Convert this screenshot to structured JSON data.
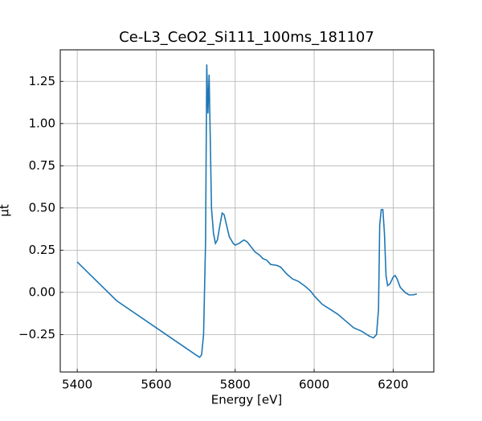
{
  "chart_data": {
    "type": "line",
    "title": "Ce-L3_CeO2_Si111_100ms_181107",
    "xlabel": "Energy [eV]",
    "ylabel": "μt",
    "x": [
      5400,
      5500,
      5600,
      5700,
      5710,
      5715,
      5720,
      5725,
      5728,
      5731,
      5734,
      5737,
      5740,
      5745,
      5750,
      5755,
      5760,
      5767,
      5772,
      5778,
      5785,
      5795,
      5800,
      5810,
      5822,
      5830,
      5840,
      5850,
      5862,
      5870,
      5880,
      5890,
      5905,
      5915,
      5930,
      5945,
      5960,
      5975,
      5990,
      6000,
      6020,
      6040,
      6060,
      6080,
      6100,
      6120,
      6140,
      6150,
      6158,
      6163,
      6166,
      6170,
      6174,
      6178,
      6182,
      6186,
      6192,
      6200,
      6205,
      6210,
      6218,
      6230,
      6240,
      6250,
      6260
    ],
    "series": [
      {
        "name": "Ce-L3_CeO2_Si111_100ms_181107",
        "color": "#1f77b4",
        "values": [
          0.18,
          -0.05,
          -0.21,
          -0.37,
          -0.385,
          -0.37,
          -0.25,
          0.3,
          1.35,
          1.06,
          1.29,
          0.9,
          0.5,
          0.35,
          0.29,
          0.31,
          0.38,
          0.47,
          0.46,
          0.4,
          0.33,
          0.29,
          0.28,
          0.29,
          0.31,
          0.3,
          0.27,
          0.24,
          0.22,
          0.2,
          0.19,
          0.165,
          0.16,
          0.15,
          0.11,
          0.08,
          0.065,
          0.04,
          0.01,
          -0.02,
          -0.07,
          -0.1,
          -0.13,
          -0.17,
          -0.21,
          -0.23,
          -0.26,
          -0.27,
          -0.25,
          -0.1,
          0.4,
          0.49,
          0.49,
          0.35,
          0.1,
          0.04,
          0.05,
          0.09,
          0.1,
          0.08,
          0.03,
          0.0,
          -0.015,
          -0.015,
          -0.01
        ]
      }
    ],
    "xlim": [
      5357,
      6303
    ],
    "xticks": [
      5400,
      5600,
      5800,
      6000,
      6200
    ],
    "ylim": [
      -0.472,
      1.437
    ],
    "yticks": [
      {
        "value": -0.25,
        "label": "−0.25"
      },
      {
        "value": 0,
        "label": "0.00"
      },
      {
        "value": 0.25,
        "label": "0.25"
      },
      {
        "value": 0.5,
        "label": "0.50"
      },
      {
        "value": 0.75,
        "label": "0.75"
      },
      {
        "value": 1,
        "label": "1.00"
      },
      {
        "value": 1.25,
        "label": "1.25"
      }
    ],
    "grid": true
  }
}
